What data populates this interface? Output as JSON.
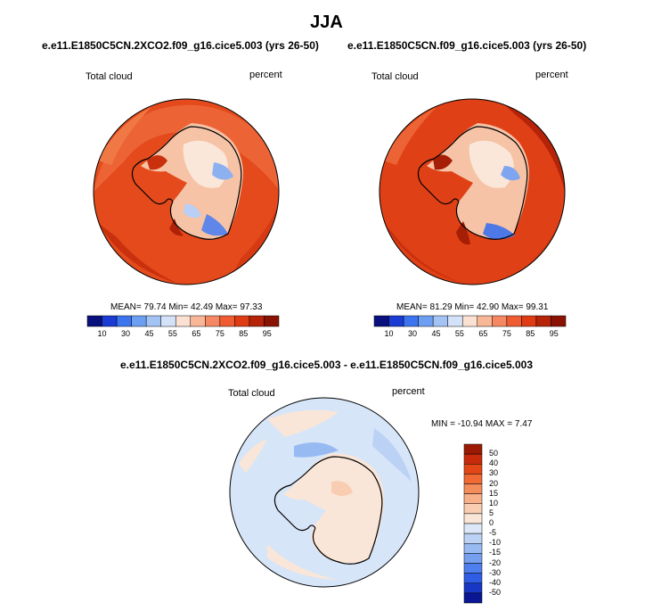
{
  "title": "JJA",
  "panels": [
    {
      "case": "e.e11.E1850C5CN.2XCO2.f09_g16.cice5.003 (yrs 26-50)",
      "variable": "Total cloud",
      "units": "percent",
      "mean_text": "MEAN= 79.74  Min= 42.49  Max= 97.33"
    },
    {
      "case": "e.e11.E1850C5CN.f09_g16.cice5.003 (yrs 26-50)",
      "variable": "Total cloud",
      "units": "percent",
      "mean_text": "MEAN= 81.29  Min= 42.90  Max= 99.31"
    }
  ],
  "top_colorbar": {
    "ticks": [
      "10",
      "30",
      "45",
      "55",
      "65",
      "75",
      "85",
      "95"
    ],
    "colors": [
      "#08107e",
      "#1a3bd4",
      "#3c74f0",
      "#6c9ff2",
      "#a3c3f5",
      "#d3e2f8",
      "#fbe1d2",
      "#f8b796",
      "#f58862",
      "#ef5c31",
      "#df3c14",
      "#b52409",
      "#8a1203"
    ]
  },
  "difference": {
    "title": "e.e11.E1850C5CN.2XCO2.f09_g16.cice5.003 - e.e11.E1850C5CN.f09_g16.cice5.003",
    "variable": "Total cloud",
    "units": "percent",
    "minmax_text": "MIN = -10.94  MAX =  7.47"
  },
  "diff_colorbar": {
    "ticks": [
      "50",
      "40",
      "30",
      "20",
      "15",
      "10",
      "5",
      "0",
      "-5",
      "-10",
      "-15",
      "-20",
      "-30",
      "-40",
      "-50"
    ],
    "colors": [
      "#9a1a04",
      "#c82a0c",
      "#e34716",
      "#f06a34",
      "#f48d5c",
      "#f7b08a",
      "#f8cdb1",
      "#fae6d8",
      "#dce8f8",
      "#bcd2f4",
      "#98baf2",
      "#769ff0",
      "#4f7fee",
      "#2f5ee4",
      "#1838c4",
      "#0a1694"
    ]
  }
}
